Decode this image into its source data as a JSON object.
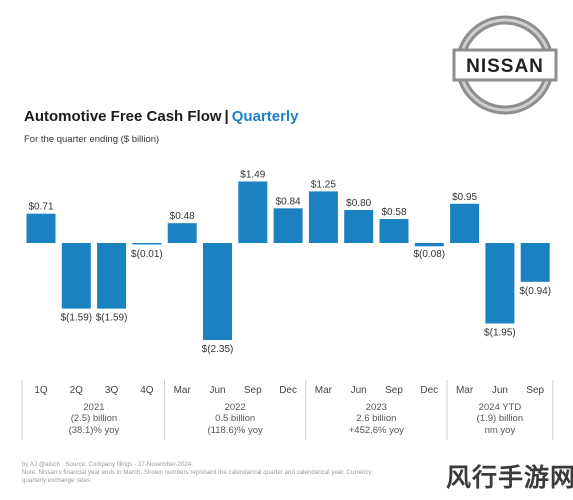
{
  "header": {
    "title_main": "Automotive Free Cash Flow",
    "title_sep": "|",
    "title_accent": "Quarterly",
    "subtitle": "For the quarter ending ($ billion)"
  },
  "logo": {
    "text": "NISSAN"
  },
  "colors": {
    "bar": "#1a82c0",
    "accent": "#1f7fc6",
    "divider": "#cfcfcf"
  },
  "chart_data": {
    "type": "bar",
    "categories": [
      "1Q",
      "2Q",
      "3Q",
      "4Q",
      "Mar",
      "Jun",
      "Sep",
      "Dec",
      "Mar",
      "Jun",
      "Sep",
      "Dec",
      "Mar",
      "Jun",
      "Sep"
    ],
    "values": [
      0.71,
      -1.59,
      -1.59,
      -0.01,
      0.48,
      -2.35,
      1.49,
      0.84,
      1.25,
      0.8,
      0.58,
      -0.08,
      0.95,
      -1.95,
      -0.94
    ],
    "data_labels": [
      "$0.71",
      "$(1.59)",
      "$(1.59)",
      "$(0.01)",
      "$0.48",
      "$(2.35)",
      "$1.49",
      "$0.84",
      "$1.25",
      "$0.80",
      "$0.58",
      "$(0.08)",
      "$0.95",
      "$(1.95)",
      "$(0.94)"
    ],
    "ylim": [
      -2.4,
      1.6
    ],
    "grid": false,
    "groups": [
      {
        "start": 0,
        "end": 3,
        "year": "2021",
        "line1": "(2.5) billion",
        "line2": "(38.1)% yoy"
      },
      {
        "start": 4,
        "end": 7,
        "year": "2022",
        "line1": "0.5 billion",
        "line2": "(118.6)% yoy"
      },
      {
        "start": 8,
        "end": 11,
        "year": "2023",
        "line1": "2.6 billion",
        "line2": "+452.6% yoy"
      },
      {
        "start": 12,
        "end": 14,
        "year": "2024 YTD",
        "line1": "(1.9) billion",
        "line2": "nm yoy"
      }
    ]
  },
  "footer": {
    "line1": "by AJ @aloch · Source: Company filings · 27-November-2024.",
    "line2": "Note: Nissan's financial year ends in March. Shown numbers represent the calendarical quarter and calendarical year. Currency:",
    "line3": "quarterly exchange rates."
  },
  "watermark": {
    "text": "风行手游网"
  }
}
